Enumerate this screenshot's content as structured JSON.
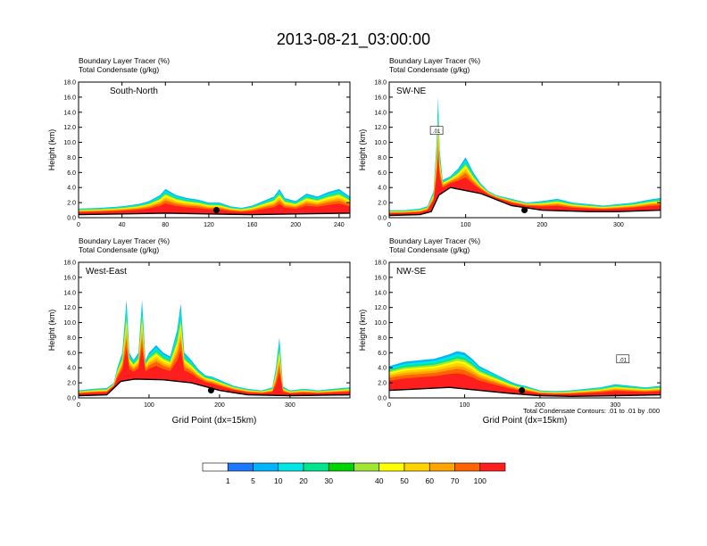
{
  "figure": {
    "title": "2013-08-21_03:00:00",
    "footnote": "Total Condensate Contours: .01 to .01 by .000"
  },
  "colorbar": {
    "levels": [
      "1",
      "5",
      "10",
      "20",
      "30",
      "40",
      "50",
      "60",
      "70",
      "100"
    ],
    "colors": [
      "#ffffff",
      "#1e78ff",
      "#00b4ff",
      "#00e6e6",
      "#00e68c",
      "#00d400",
      "#a0e632",
      "#ffff00",
      "#ffd200",
      "#ffa500",
      "#ff6400",
      "#ff1e1e"
    ]
  },
  "chart_data": [
    {
      "type": "area",
      "panel": "top-left",
      "label": "South-North",
      "header_left_1": "Boundary Layer Tracer",
      "header_unit_1": "(%)",
      "header_left_2": "Total Condensate",
      "header_unit_2": "(g/kg)",
      "ylabel": "Height (km)",
      "xlabel": "",
      "xlim": [
        0,
        250
      ],
      "ylim": [
        0,
        18
      ],
      "xticks": [
        "0",
        "40",
        "80",
        "120",
        "160",
        "200",
        "240"
      ],
      "xtick_values": [
        0,
        40,
        80,
        120,
        160,
        200,
        240
      ],
      "yticks": [
        "0.0",
        "2.0",
        "4.0",
        "6.0",
        "8.0",
        "10.0",
        "12.0",
        "14.0",
        "16.0",
        "18.0"
      ],
      "tracer_top_x": [
        0,
        20,
        40,
        55,
        65,
        75,
        80,
        90,
        100,
        110,
        120,
        130,
        140,
        150,
        160,
        170,
        180,
        185,
        190,
        200,
        210,
        220,
        230,
        240,
        250
      ],
      "tracer_top_y": [
        1.2,
        1.3,
        1.5,
        1.8,
        2.2,
        3.0,
        3.8,
        3.0,
        2.6,
        2.4,
        2.0,
        2.0,
        1.5,
        1.3,
        1.6,
        2.2,
        2.8,
        3.8,
        2.6,
        2.2,
        3.2,
        2.8,
        3.4,
        3.8,
        2.8
      ],
      "terrain_x": [
        0,
        40,
        80,
        120,
        160,
        200,
        250
      ],
      "terrain_y": [
        0.4,
        0.5,
        0.6,
        0.5,
        0.4,
        0.5,
        0.6
      ],
      "marker": {
        "x": 127,
        "y": 1.0
      }
    },
    {
      "type": "area",
      "panel": "top-right",
      "label": "SW-NE",
      "header_left_1": "Boundary Layer Tracer",
      "header_unit_1": "(%)",
      "header_left_2": "Total Condensate",
      "header_unit_2": "(g/kg)",
      "ylabel": "Height (km)",
      "xlabel": "",
      "xlim": [
        0,
        355
      ],
      "ylim": [
        0,
        18
      ],
      "xticks": [
        "0",
        "100",
        "200",
        "300"
      ],
      "xtick_values": [
        0,
        100,
        200,
        300
      ],
      "yticks": [
        "0.0",
        "2.0",
        "4.0",
        "6.0",
        "8.0",
        "10.0",
        "12.0",
        "14.0",
        "16.0",
        "18.0"
      ],
      "tracer_top_x": [
        0,
        20,
        40,
        50,
        58,
        62,
        64,
        66,
        70,
        80,
        90,
        100,
        110,
        120,
        130,
        140,
        160,
        180,
        200,
        220,
        240,
        260,
        280,
        300,
        320,
        340,
        355
      ],
      "tracer_top_y": [
        1.0,
        1.0,
        1.2,
        1.5,
        3.5,
        10.0,
        16.0,
        9.0,
        5.0,
        5.5,
        6.5,
        8.0,
        6.0,
        4.5,
        3.5,
        3.0,
        2.5,
        2.0,
        2.2,
        2.5,
        2.0,
        1.8,
        1.6,
        1.8,
        2.0,
        2.4,
        2.6
      ],
      "terrain_x": [
        0,
        40,
        55,
        65,
        80,
        120,
        160,
        200,
        260,
        300,
        355
      ],
      "terrain_y": [
        0.3,
        0.4,
        0.8,
        3.0,
        4.0,
        3.2,
        1.6,
        1.0,
        0.8,
        0.8,
        1.0
      ],
      "marker": {
        "x": 177,
        "y": 1.0
      },
      "contour_label": ".01"
    },
    {
      "type": "area",
      "panel": "bottom-left",
      "label": "West-East",
      "header_left_1": "Boundary Layer Tracer",
      "header_unit_1": "(%)",
      "header_left_2": "Total Condensate",
      "header_unit_2": "(g/kg)",
      "ylabel": "Height (km)",
      "xlabel": "Grid Point (dx=15km)",
      "xlim": [
        0,
        385
      ],
      "ylim": [
        0,
        18
      ],
      "xticks": [
        "0",
        "100",
        "200",
        "300"
      ],
      "xtick_values": [
        0,
        100,
        200,
        300
      ],
      "yticks": [
        "0.0",
        "2.0",
        "4.0",
        "6.0",
        "8.0",
        "10.0",
        "12.0",
        "14.0",
        "16.0",
        "18.0"
      ],
      "tracer_top_x": [
        0,
        20,
        40,
        50,
        55,
        62,
        68,
        72,
        78,
        85,
        90,
        95,
        100,
        110,
        120,
        130,
        140,
        145,
        150,
        160,
        170,
        180,
        190,
        200,
        220,
        240,
        260,
        275,
        280,
        285,
        290,
        300,
        320,
        340,
        360,
        385
      ],
      "tracer_top_y": [
        1.0,
        1.2,
        1.3,
        2.0,
        4.0,
        6.0,
        13.0,
        6.0,
        5.0,
        6.0,
        13.0,
        5.0,
        6.0,
        7.0,
        6.0,
        5.5,
        9.0,
        12.5,
        6.0,
        5.0,
        3.8,
        3.0,
        2.8,
        2.4,
        1.6,
        1.2,
        1.0,
        1.4,
        4.0,
        8.0,
        1.5,
        1.0,
        1.2,
        1.0,
        1.2,
        1.4
      ],
      "terrain_x": [
        0,
        40,
        60,
        80,
        120,
        160,
        200,
        240,
        300,
        385
      ],
      "terrain_y": [
        0.3,
        0.4,
        2.2,
        2.5,
        2.4,
        2.0,
        1.0,
        0.4,
        0.3,
        0.4
      ],
      "marker": {
        "x": 188,
        "y": 1.0
      }
    },
    {
      "type": "area",
      "panel": "bottom-right",
      "label": "NW-SE",
      "header_left_1": "Boundary Layer Tracer",
      "header_unit_1": "(%)",
      "header_left_2": "Total Condensate",
      "header_unit_2": "(g/kg)",
      "ylabel": "Height (km)",
      "xlabel": "Grid Point (dx=15km)",
      "xlim": [
        0,
        360
      ],
      "ylim": [
        0,
        18
      ],
      "xticks": [
        "0",
        "100",
        "200",
        "300"
      ],
      "xtick_values": [
        0,
        100,
        200,
        300
      ],
      "yticks": [
        "0.0",
        "2.0",
        "4.0",
        "6.0",
        "8.0",
        "10.0",
        "12.0",
        "14.0",
        "16.0",
        "18.0"
      ],
      "tracer_top_x": [
        0,
        20,
        40,
        60,
        80,
        90,
        100,
        110,
        120,
        140,
        160,
        170,
        180,
        200,
        220,
        240,
        260,
        280,
        300,
        320,
        340,
        360
      ],
      "tracer_top_y": [
        4.2,
        4.8,
        5.0,
        5.2,
        5.8,
        6.2,
        6.0,
        5.2,
        4.2,
        3.2,
        2.2,
        1.8,
        1.6,
        1.0,
        0.9,
        1.0,
        1.2,
        1.4,
        1.8,
        1.6,
        1.4,
        1.6
      ],
      "terrain_x": [
        0,
        40,
        80,
        120,
        160,
        200,
        240,
        300,
        360
      ],
      "terrain_y": [
        1.0,
        1.2,
        1.4,
        1.0,
        0.6,
        0.3,
        0.2,
        0.3,
        0.4
      ],
      "marker": {
        "x": 176,
        "y": 1.0
      },
      "contour_label": ".01",
      "footnote_bound": true
    }
  ]
}
